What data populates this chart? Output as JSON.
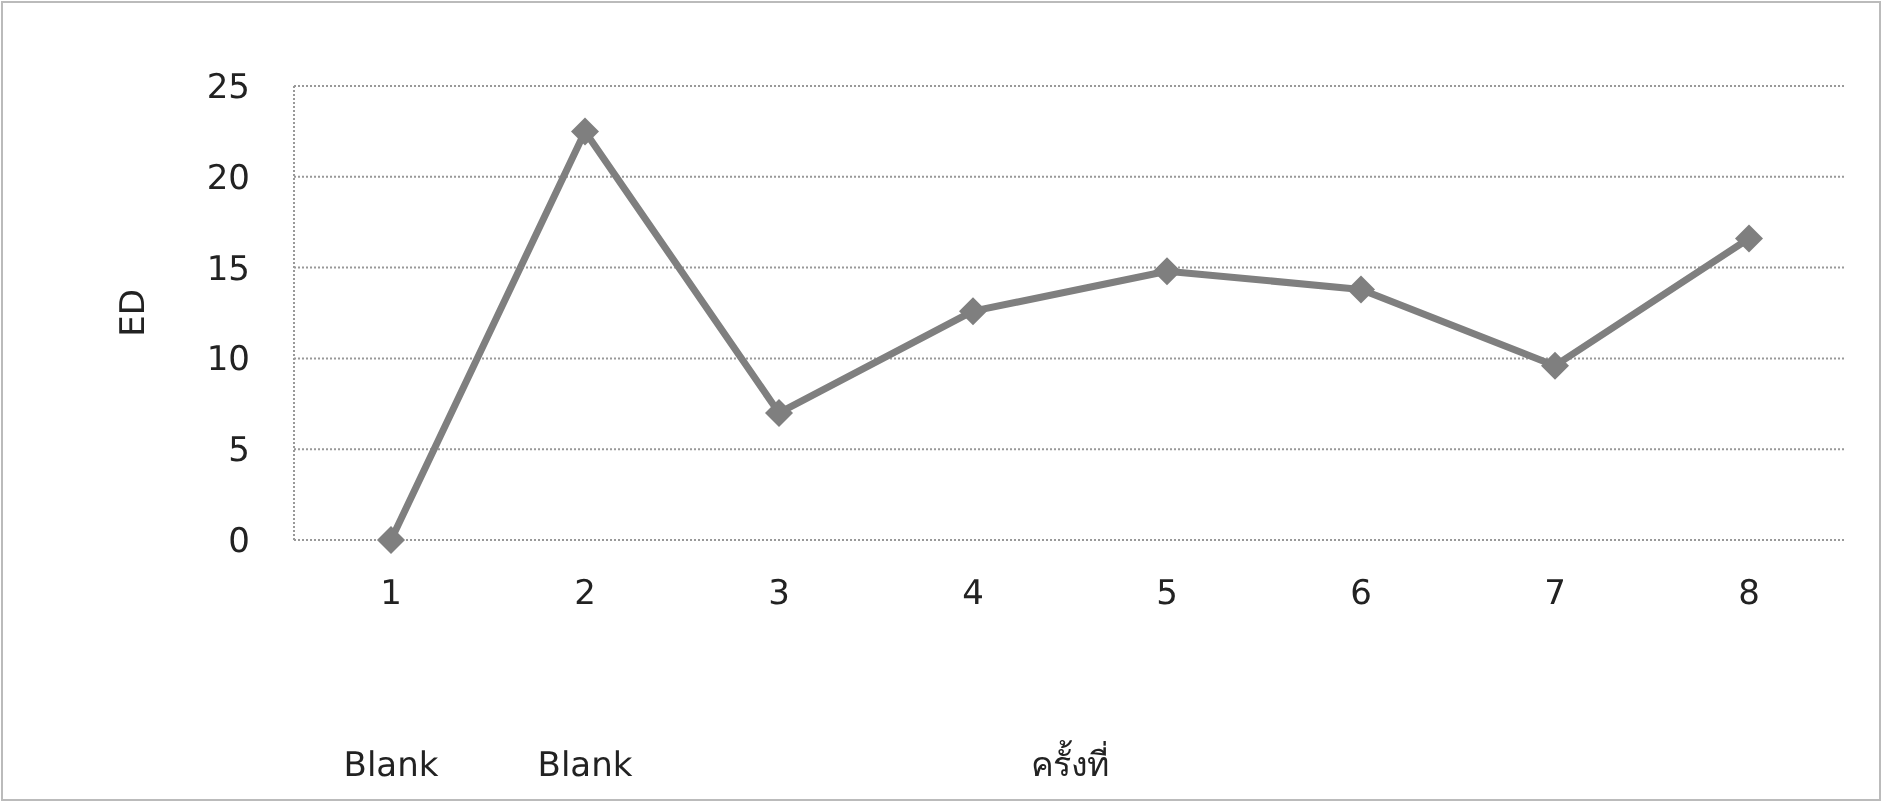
{
  "chart_data": {
    "type": "line",
    "xlabel": "ครั้งที่",
    "ylabel": "ED",
    "categories": [
      "1",
      "2",
      "3",
      "4",
      "5",
      "6",
      "7",
      "8"
    ],
    "series": [
      {
        "color": "#7f7f7f",
        "values": [
          0,
          22.5,
          7,
          12.6,
          14.8,
          13.8,
          9.6,
          16.6
        ]
      }
    ],
    "ylim": [
      0,
      25
    ],
    "yticks": [
      0,
      5,
      10,
      15,
      20,
      25
    ],
    "grid": "y",
    "marker": "diamond",
    "line_style": "solid",
    "annotations": [
      "Blank",
      "Blank"
    ]
  }
}
